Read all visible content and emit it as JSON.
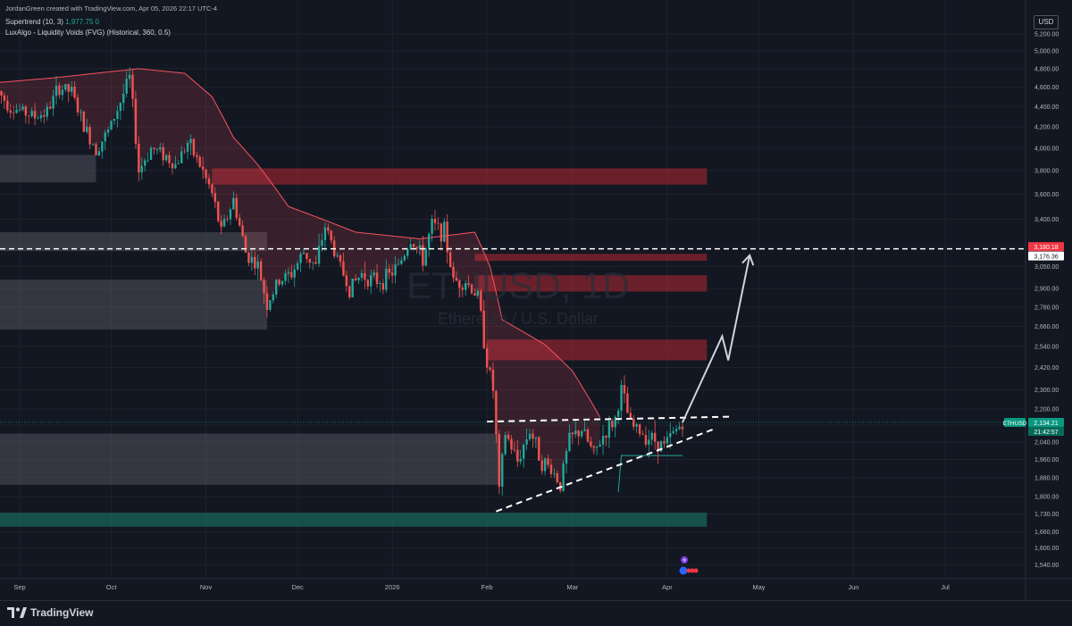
{
  "header": {
    "credit": "JordanGreen created with TradingView.com, Apr 05, 2026 22:17 UTC-4",
    "indicator1_name": "Supertrend (10, 3)",
    "indicator1_value": "1,977.75",
    "indicator1_extra": "0",
    "indicator2": "LuxAlgo - Liquidity Voids (FVG) (Historical, 360, 0.5)"
  },
  "currency": "USD",
  "watermark": {
    "symbol": "ETHUSD, 1D",
    "name": "Ethereum / U.S. Dollar"
  },
  "brand": "TradingView",
  "colors": {
    "background": "#131722",
    "up": "#26a69a",
    "down": "#ef5350",
    "supertrend_down": "#f7525f",
    "supertrend_up": "#26a69a",
    "bear_zone": "#b22833",
    "void_zone": "#5d606b",
    "bull_zone": "#1b7d6b",
    "level_line": "#ffffff",
    "axis_text": "#b2b5be"
  },
  "chart_data": {
    "type": "candlestick",
    "symbol": "ETHUSD",
    "timeframe": "1D",
    "title": "ETHUSD, 1D",
    "subtitle": "Ethereum / U.S. Dollar",
    "x_range": [
      "2025-08-25",
      "2026-07-20"
    ],
    "x_ticks": [
      {
        "date": "2025-09-01",
        "label": "Sep"
      },
      {
        "date": "2025-10-01",
        "label": "Oct"
      },
      {
        "date": "2025-11-01",
        "label": "Nov"
      },
      {
        "date": "2025-12-01",
        "label": "Dec"
      },
      {
        "date": "2026-01-01",
        "label": "2026"
      },
      {
        "date": "2026-02-01",
        "label": "Feb"
      },
      {
        "date": "2026-03-01",
        "label": "Mar"
      },
      {
        "date": "2026-04-01",
        "label": "Apr"
      },
      {
        "date": "2026-05-01",
        "label": "May"
      },
      {
        "date": "2026-06-01",
        "label": "Jun"
      },
      {
        "date": "2026-07-01",
        "label": "Jul"
      }
    ],
    "y_scale": "log",
    "y_range": [
      1480,
      5300
    ],
    "y_ticks": [
      "5,200.00",
      "5,000.00",
      "4,800.00",
      "4,600.00",
      "4,400.00",
      "4,200.00",
      "4,000.00",
      "3,800.00",
      "3,600.00",
      "3,400.00",
      "3,200.00",
      "3,050.00",
      "2,900.00",
      "2,780.00",
      "2,660.00",
      "2,540.00",
      "2,420.00",
      "2,300.00",
      "2,200.00",
      "2,120.00",
      "2,040.00",
      "1,960.00",
      "1,880.00",
      "1,800.00",
      "1,730.00",
      "1,660.00",
      "1,600.00",
      "1,540.00"
    ],
    "grid": true,
    "price_path": [
      [
        "2025-08-25",
        4550
      ],
      [
        "2025-08-29",
        4400
      ],
      [
        "2025-09-02",
        4350
      ],
      [
        "2025-09-06",
        4300
      ],
      [
        "2025-09-10",
        4350
      ],
      [
        "2025-09-14",
        4600
      ],
      [
        "2025-09-18",
        4550
      ],
      [
        "2025-09-22",
        4200
      ],
      [
        "2025-09-26",
        4000
      ],
      [
        "2025-09-30",
        4150
      ],
      [
        "2025-10-04",
        4450
      ],
      [
        "2025-10-07",
        4700
      ],
      [
        "2025-10-10",
        3800
      ],
      [
        "2025-10-14",
        4000
      ],
      [
        "2025-10-18",
        3950
      ],
      [
        "2025-10-22",
        3850
      ],
      [
        "2025-10-26",
        4050
      ],
      [
        "2025-10-30",
        3850
      ],
      [
        "2025-11-03",
        3600
      ],
      [
        "2025-11-06",
        3300
      ],
      [
        "2025-11-10",
        3550
      ],
      [
        "2025-11-14",
        3150
      ],
      [
        "2025-11-18",
        3050
      ],
      [
        "2025-11-21",
        2800
      ],
      [
        "2025-11-25",
        2950
      ],
      [
        "2025-11-29",
        3000
      ],
      [
        "2025-12-03",
        3150
      ],
      [
        "2025-12-07",
        3050
      ],
      [
        "2025-12-10",
        3350
      ],
      [
        "2025-12-14",
        3100
      ],
      [
        "2025-12-18",
        2900
      ],
      [
        "2025-12-22",
        3000
      ],
      [
        "2025-12-26",
        2950
      ],
      [
        "2025-12-30",
        2970
      ],
      [
        "2026-01-03",
        3050
      ],
      [
        "2026-01-07",
        3250
      ],
      [
        "2026-01-11",
        3100
      ],
      [
        "2026-01-14",
        3350
      ],
      [
        "2026-01-18",
        3300
      ],
      [
        "2026-01-21",
        2950
      ],
      [
        "2026-01-25",
        2950
      ],
      [
        "2026-01-29",
        2850
      ],
      [
        "2026-02-01",
        2450
      ],
      [
        "2026-02-03",
        2300
      ],
      [
        "2026-02-05",
        1820
      ],
      [
        "2026-02-07",
        2080
      ],
      [
        "2026-02-11",
        1950
      ],
      [
        "2026-02-15",
        2100
      ],
      [
        "2026-02-19",
        1950
      ],
      [
        "2026-02-22",
        1920
      ],
      [
        "2026-02-25",
        1850
      ],
      [
        "2026-02-28",
        2050
      ],
      [
        "2026-03-04",
        2100
      ],
      [
        "2026-03-08",
        1980
      ],
      [
        "2026-03-11",
        2070
      ],
      [
        "2026-03-15",
        2150
      ],
      [
        "2026-03-17",
        2300
      ],
      [
        "2026-03-20",
        2120
      ],
      [
        "2026-03-24",
        2080
      ],
      [
        "2026-03-28",
        2050
      ],
      [
        "2026-03-31",
        2020
      ],
      [
        "2026-04-03",
        2080
      ],
      [
        "2026-04-06",
        2134
      ]
    ],
    "supertrend": [
      [
        "2025-08-25",
        4650
      ],
      [
        "2025-09-12",
        4700
      ],
      [
        "2025-10-10",
        4800
      ],
      [
        "2025-10-25",
        4750
      ],
      [
        "2025-11-03",
        4500
      ],
      [
        "2025-11-10",
        4100
      ],
      [
        "2025-11-18",
        3850
      ],
      [
        "2025-11-28",
        3500
      ],
      [
        "2025-12-20",
        3300
      ],
      [
        "2026-01-10",
        3250
      ],
      [
        "2026-01-28",
        3300
      ],
      [
        "2026-02-02",
        3050
      ],
      [
        "2026-02-06",
        2700
      ],
      [
        "2026-02-20",
        2550
      ],
      [
        "2026-03-01",
        2400
      ],
      [
        "2026-03-10",
        2160
      ]
    ],
    "zones": [
      {
        "kind": "bear",
        "from": "2025-11-03",
        "to": "2026-04-14",
        "low": 3680,
        "high": 3820
      },
      {
        "kind": "bear",
        "from": "2026-01-28",
        "to": "2026-04-14",
        "low": 3090,
        "high": 3140
      },
      {
        "kind": "bear",
        "from": "2026-01-28",
        "to": "2026-04-14",
        "low": 2880,
        "high": 2990
      },
      {
        "kind": "bear",
        "from": "2026-02-01",
        "to": "2026-04-14",
        "low": 2460,
        "high": 2580
      },
      {
        "kind": "void",
        "from": "2025-08-25",
        "to": "2025-09-26",
        "low": 3700,
        "high": 3940
      },
      {
        "kind": "void",
        "from": "2025-08-25",
        "to": "2025-11-21",
        "low": 3160,
        "high": 3300
      },
      {
        "kind": "void",
        "from": "2025-08-25",
        "to": "2025-11-21",
        "low": 2640,
        "high": 2960
      },
      {
        "kind": "void",
        "from": "2025-08-25",
        "to": "2026-02-05",
        "low": 1850,
        "high": 2080
      },
      {
        "kind": "bull",
        "from": "2025-08-25",
        "to": "2026-04-14",
        "low": 1680,
        "high": 1735
      }
    ],
    "levels": [
      {
        "price": 3176.36,
        "label": "3,176.36",
        "style": "dashed",
        "color": "#ffffff"
      },
      {
        "price": 3180.18,
        "label": "3,180.18",
        "color": "#f23645"
      },
      {
        "price": 2134.21,
        "label": "2,134.21",
        "color": "#089981"
      }
    ],
    "trendlines": [
      {
        "name": "resistance",
        "from": [
          "2026-02-01",
          2138
        ],
        "to": [
          "2026-04-22",
          2162
        ]
      },
      {
        "name": "support",
        "from": [
          "2026-02-04",
          1740
        ],
        "to": [
          "2026-04-16",
          2100
        ]
      }
    ],
    "projection": [
      [
        "2026-04-06",
        2134
      ],
      [
        "2026-04-19",
        2600
      ],
      [
        "2026-04-21",
        2460
      ],
      [
        "2026-04-28",
        3130
      ]
    ],
    "last_price": {
      "symbol": "ETHUSD",
      "value": "2,134.21",
      "countdown": "21:42:57"
    }
  }
}
